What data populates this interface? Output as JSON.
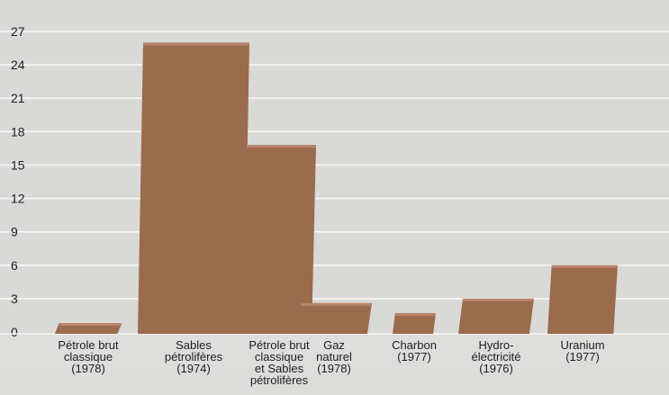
{
  "chart_data": {
    "type": "bar",
    "title": "",
    "xlabel": "",
    "ylabel": "",
    "ylim": [
      0,
      27
    ],
    "yticks": [
      0,
      3,
      6,
      9,
      12,
      15,
      18,
      21,
      24,
      27
    ],
    "grid": true,
    "legend": "none",
    "categories": [
      [
        "Pétrole brut",
        "classique",
        "(1978)"
      ],
      [
        "Sables",
        "pétrolifères",
        "(1974)"
      ],
      [
        "Pétrole brut",
        "classique",
        "et Sables",
        "pétrolifères"
      ],
      [
        "Gaz",
        "naturel",
        "(1978)"
      ],
      [
        "Charbon",
        "(1977)"
      ],
      [
        "Hydro-",
        "électricité",
        "(1976)"
      ],
      [
        "Uranium",
        "(1977)"
      ]
    ],
    "values": [
      0.8,
      26,
      16.8,
      2.6,
      1.7,
      3.0,
      6.0
    ],
    "colors": {
      "bar": "#9b6b4d",
      "bar_top": "#b8846a",
      "background": "#dcdcda",
      "grid": "#f7f7f5"
    }
  }
}
